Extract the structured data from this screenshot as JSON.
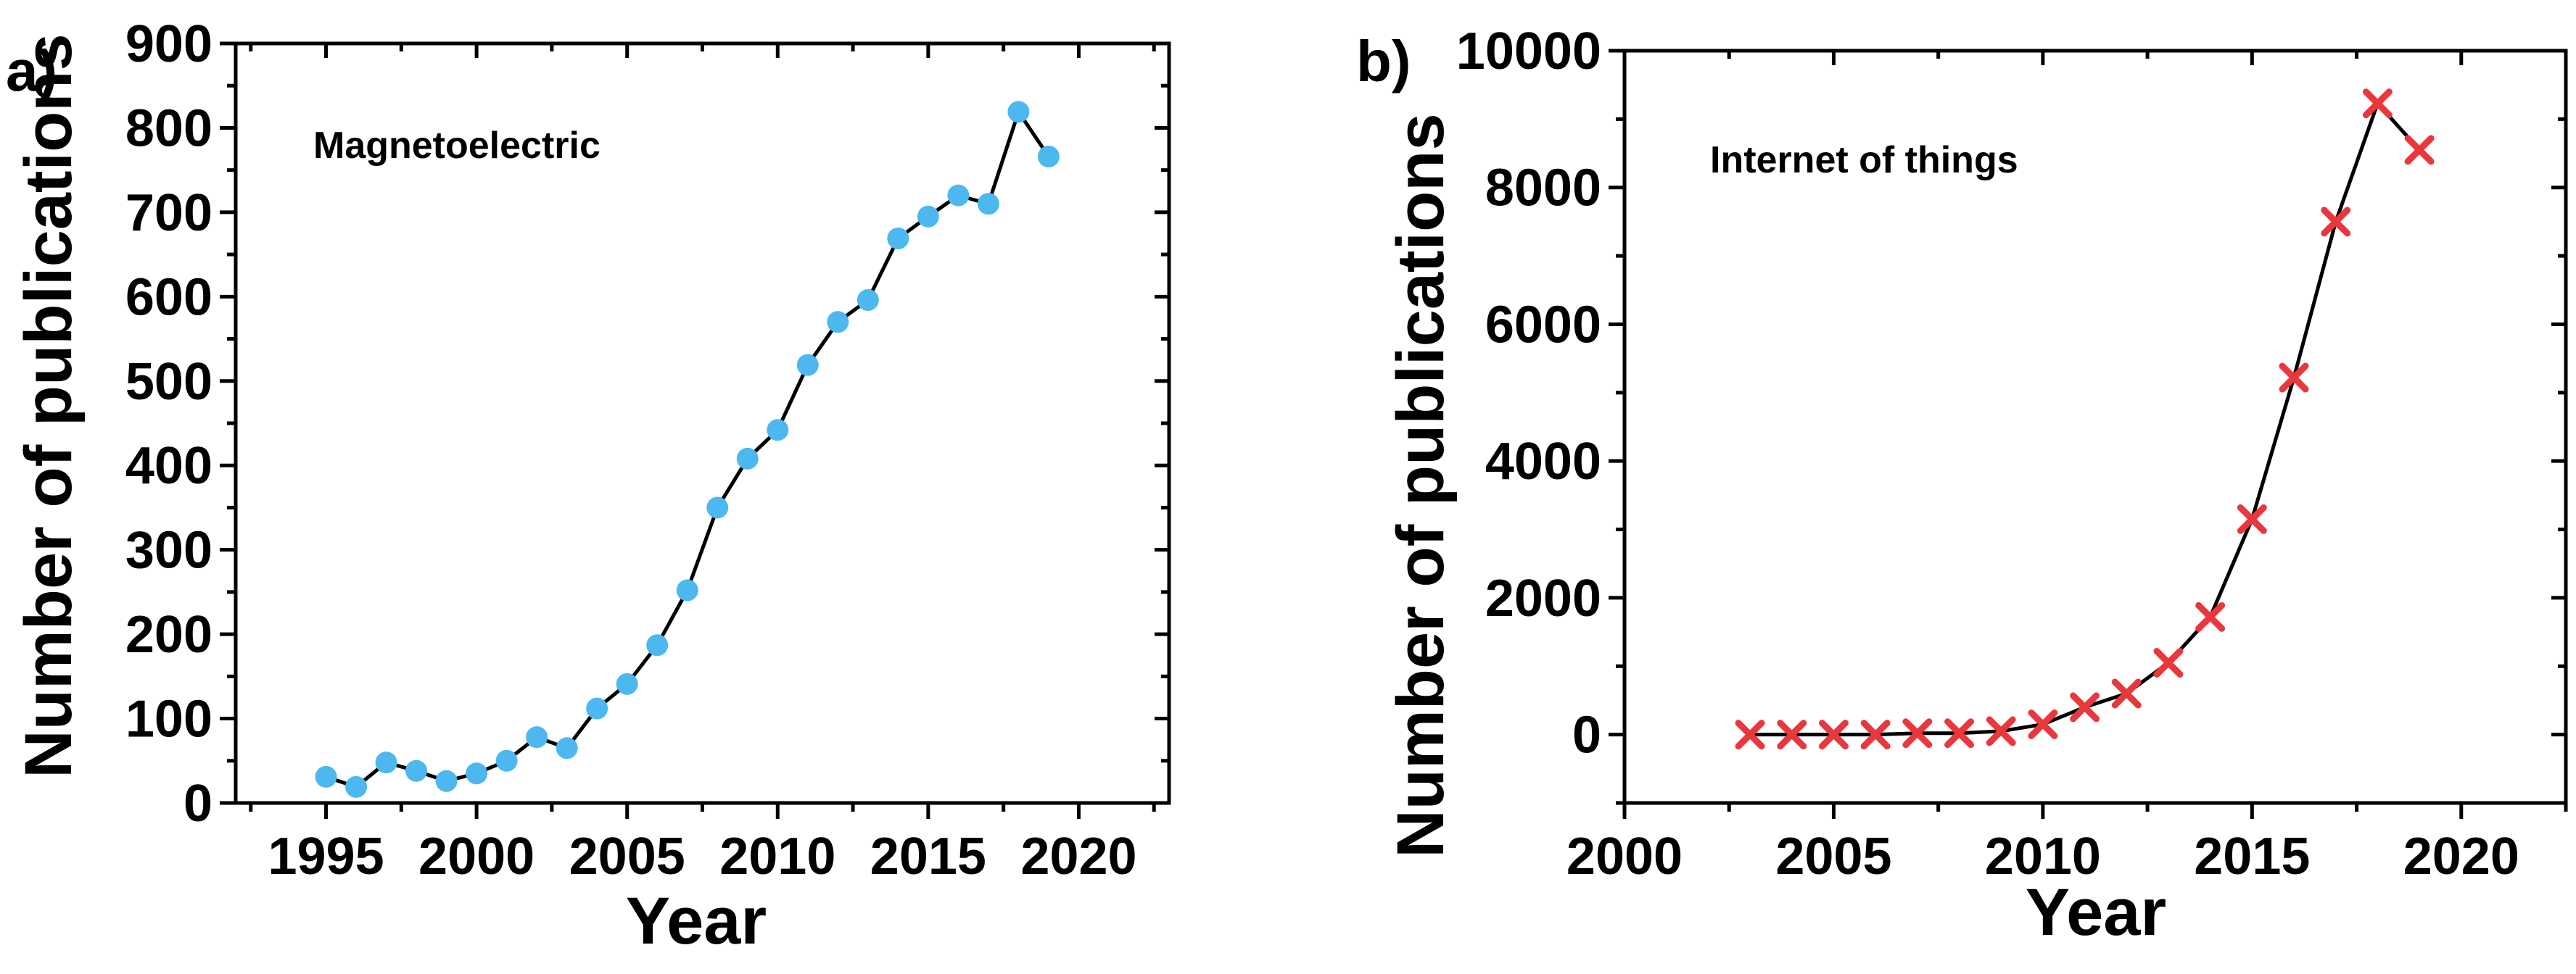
{
  "chart_data": [
    {
      "panel_label": "a)",
      "type": "line",
      "annotation": "Magnetoelectric",
      "xlabel": "Year",
      "ylabel": "Number of publications",
      "xlim": [
        1992,
        2023
      ],
      "ylim": [
        0,
        900
      ],
      "xticks": [
        1995,
        2000,
        2005,
        2010,
        2015,
        2020
      ],
      "yticks": [
        0,
        100,
        200,
        300,
        400,
        500,
        600,
        700,
        800,
        900
      ],
      "marker": "circle",
      "marker_color": "#4DB8F0",
      "line_color": "#000000",
      "series": [
        {
          "x": [
            1995,
            1996,
            1997,
            1998,
            1999,
            2000,
            2001,
            2002,
            2003,
            2004,
            2005,
            2006,
            2007,
            2008,
            2009,
            2010,
            2011,
            2012,
            2013,
            2014,
            2015,
            2016,
            2017,
            2018,
            2019
          ],
          "y": [
            31,
            19,
            48,
            38,
            26,
            35,
            50,
            78,
            65,
            112,
            141,
            187,
            252,
            350,
            408,
            442,
            519,
            570,
            596,
            669,
            695,
            720,
            710,
            819,
            766
          ]
        }
      ]
    },
    {
      "panel_label": "b)",
      "type": "line",
      "annotation": "Internet of things",
      "xlabel": "Year",
      "ylabel": "Number of publications",
      "xlim": [
        2000,
        2022.5
      ],
      "ylim": [
        -1000,
        10000
      ],
      "xticks": [
        2000,
        2005,
        2010,
        2015,
        2020
      ],
      "yticks": [
        0,
        2000,
        4000,
        6000,
        8000,
        10000
      ],
      "marker": "x",
      "marker_color": "#E8383D",
      "line_color": "#000000",
      "series": [
        {
          "x": [
            2003,
            2004,
            2005,
            2006,
            2007,
            2008,
            2009,
            2010,
            2011,
            2012,
            2013,
            2014,
            2015,
            2016,
            2017,
            2018,
            2019
          ],
          "y": [
            0,
            0,
            0,
            0,
            20,
            20,
            50,
            150,
            400,
            600,
            1050,
            1720,
            3150,
            5220,
            7500,
            9230,
            8550
          ]
        }
      ]
    }
  ]
}
